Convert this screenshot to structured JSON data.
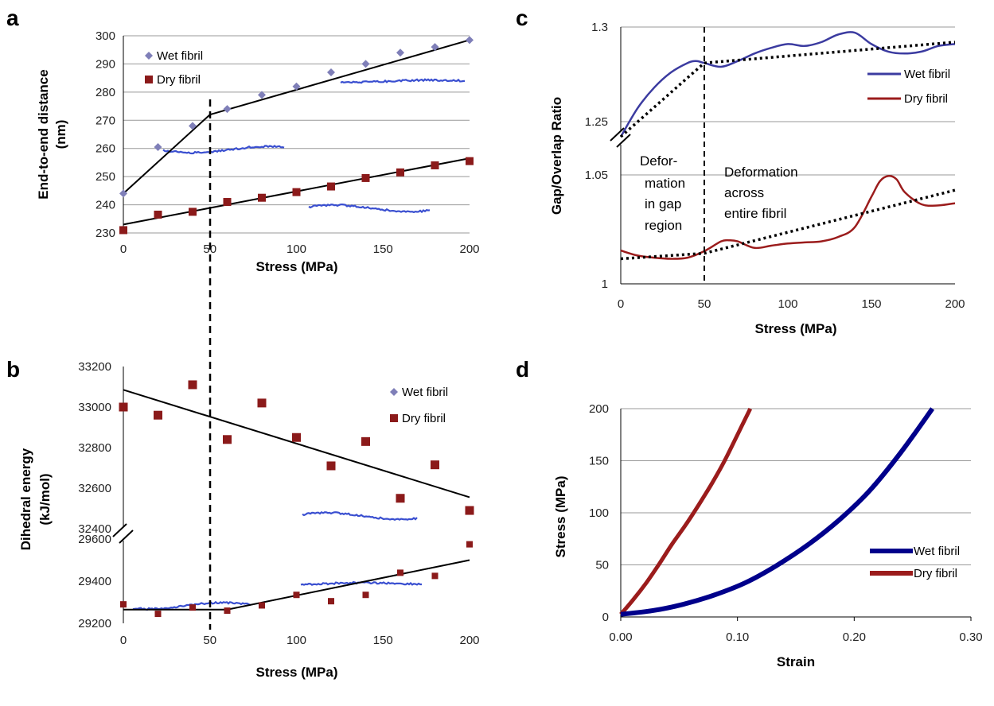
{
  "colors": {
    "wet": "#7f7fb8",
    "dry": "#8b1a1a",
    "wet_line": "#3b3ba0",
    "dry_line": "#9b1c1c",
    "wet_thick": "#00008b",
    "fit": "#000000",
    "grid": "#999999",
    "molecule": "#3a4fd0"
  },
  "chart_data": [
    {
      "panel": "a",
      "type": "scatter",
      "xlabel": "Stress (MPa)",
      "ylabel": "End-to-end distance (nm)",
      "xlim": [
        0,
        200
      ],
      "ylim": [
        230,
        300
      ],
      "xticks": [
        "0",
        "50",
        "100",
        "150",
        "200"
      ],
      "yticks": [
        "230",
        "240",
        "250",
        "260",
        "270",
        "280",
        "290",
        "300"
      ],
      "legend": [
        "Wet fibril",
        "Dry fibril"
      ],
      "legend_position": "top-left",
      "grid": true,
      "series": [
        {
          "name": "Wet fibril",
          "x": [
            0,
            20,
            40,
            60,
            80,
            100,
            120,
            140,
            160,
            180,
            200
          ],
          "y": [
            244,
            260.5,
            268,
            274,
            279,
            282,
            287,
            290,
            294,
            296,
            298.5
          ]
        },
        {
          "name": "Dry fibril",
          "x": [
            0,
            20,
            40,
            60,
            80,
            100,
            120,
            140,
            160,
            180,
            200
          ],
          "y": [
            231,
            236.5,
            237.5,
            241,
            242.5,
            244.5,
            246.5,
            249.5,
            251.5,
            254,
            255.5
          ]
        }
      ],
      "fits": [
        {
          "x": [
            0,
            50
          ],
          "y": [
            244,
            272
          ]
        },
        {
          "x": [
            50,
            200
          ],
          "y": [
            272,
            298.5
          ]
        },
        {
          "x": [
            0,
            200
          ],
          "y": [
            233,
            256.5
          ]
        }
      ],
      "vline_x": 50
    },
    {
      "panel": "b",
      "type": "scatter",
      "xlabel": "Stress (MPa)",
      "ylabel": "Dihedral energy (kJ/mol)",
      "xticks": [
        "0",
        "50",
        "100",
        "150",
        "200"
      ],
      "yticks_upper": [
        "32400",
        "32600",
        "32800",
        "33000",
        "33200"
      ],
      "yticks_lower": [
        "29200",
        "29400",
        "29600"
      ],
      "ylim_upper": [
        32400,
        33200
      ],
      "ylim_lower": [
        29200,
        29600
      ],
      "legend": [
        "Wet fibril",
        "Dry fibril"
      ],
      "legend_position": "top-right",
      "series": [
        {
          "name": "Dry fibril",
          "x": [
            0,
            20,
            40,
            60,
            80,
            100,
            120,
            140,
            160,
            180,
            200
          ],
          "y": [
            33000,
            32960,
            33110,
            32840,
            33020,
            32850,
            32710,
            32830,
            32550,
            32715,
            32490
          ]
        },
        {
          "name": "Wet fibril",
          "x": [
            0,
            20,
            40,
            60,
            80,
            100,
            120,
            140,
            160,
            180,
            200
          ],
          "y": [
            29290,
            29245,
            29275,
            29260,
            29285,
            29335,
            29305,
            29335,
            29440,
            29425,
            29575
          ]
        }
      ],
      "fits": [
        {
          "x": [
            0,
            200
          ],
          "y": [
            33085,
            32555
          ]
        },
        {
          "x": [
            0,
            60
          ],
          "y": [
            29265,
            29265
          ]
        },
        {
          "x": [
            60,
            200
          ],
          "y": [
            29265,
            29500
          ]
        }
      ],
      "vline_x": 50
    },
    {
      "panel": "c",
      "type": "line",
      "xlabel": "Stress (MPa)",
      "ylabel": "Gap/Overlap Ratio",
      "xticks": [
        "0",
        "50",
        "100",
        "150",
        "200"
      ],
      "yticks": [
        "1",
        "1.05",
        "1.25",
        "1.3"
      ],
      "legend": [
        "Wet fibril",
        "Dry fibril"
      ],
      "legend_position": "top-right",
      "annotations": [
        "Defor-",
        "mation",
        "in gap",
        "region",
        "Deformation",
        "across",
        "entire fibril"
      ],
      "series": [
        {
          "name": "Wet fibril",
          "x": [
            0,
            10,
            20,
            30,
            40,
            45,
            50,
            60,
            70,
            80,
            90,
            100,
            110,
            120,
            130,
            140,
            150,
            160,
            170,
            180,
            190,
            200
          ],
          "y": [
            1.242,
            1.257,
            1.268,
            1.276,
            1.281,
            1.282,
            1.281,
            1.279,
            1.282,
            1.286,
            1.289,
            1.291,
            1.29,
            1.292,
            1.296,
            1.297,
            1.291,
            1.287,
            1.286,
            1.287,
            1.29,
            1.291
          ]
        },
        {
          "name": "Dry fibril",
          "x": [
            0,
            10,
            20,
            30,
            40,
            50,
            60,
            65,
            70,
            80,
            90,
            100,
            110,
            120,
            130,
            140,
            150,
            155,
            160,
            165,
            170,
            180,
            190,
            200
          ],
          "y": [
            1.0153,
            1.013,
            1.012,
            1.0115,
            1.012,
            1.015,
            1.0195,
            1.02,
            1.0195,
            1.0165,
            1.0175,
            1.0185,
            1.019,
            1.0195,
            1.0215,
            1.026,
            1.04,
            1.047,
            1.0495,
            1.048,
            1.042,
            1.0365,
            1.036,
            1.037
          ]
        }
      ],
      "fits": [
        {
          "x": [
            0,
            50
          ],
          "y": [
            1.242,
            1.281
          ]
        },
        {
          "x": [
            50,
            200
          ],
          "y": [
            1.281,
            1.292
          ]
        },
        {
          "x": [
            0,
            50,
            200
          ],
          "y": [
            1.0115,
            1.014,
            1.043
          ]
        }
      ],
      "vline_x": 50
    },
    {
      "panel": "d",
      "type": "line",
      "xlabel": "Strain",
      "ylabel": "Stress (MPa)",
      "xlim": [
        0,
        0.3
      ],
      "ylim": [
        0,
        200
      ],
      "xticks": [
        "0.00",
        "0.10",
        "0.20",
        "0.30"
      ],
      "yticks": [
        "0",
        "50",
        "100",
        "150",
        "200"
      ],
      "legend": [
        "Wet fibril",
        "Dry fibril"
      ],
      "legend_position": "right",
      "grid": true,
      "series": [
        {
          "name": "Wet fibril",
          "x": [
            0,
            0.027,
            0.053,
            0.08,
            0.107,
            0.133,
            0.16,
            0.187,
            0.213,
            0.24,
            0.267
          ],
          "y": [
            2.5,
            6,
            12,
            21,
            33,
            49,
            69,
            93,
            121,
            158,
            200
          ]
        },
        {
          "name": "Dry fibril",
          "x": [
            0,
            0.011,
            0.022,
            0.033,
            0.044,
            0.056,
            0.067,
            0.078,
            0.089,
            0.1,
            0.111
          ],
          "y": [
            2.5,
            17,
            33,
            51,
            70,
            89,
            108,
            128,
            150,
            175,
            200
          ]
        }
      ]
    }
  ],
  "panel_labels": {
    "a": "a",
    "b": "b",
    "c": "c",
    "d": "d"
  }
}
